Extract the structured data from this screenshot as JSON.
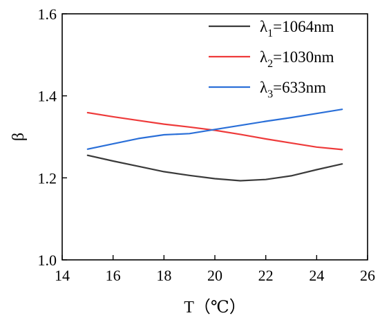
{
  "chart_data": {
    "type": "line",
    "title": "",
    "xlabel": "T（℃）",
    "ylabel": "β",
    "xlim": [
      14,
      26
    ],
    "ylim": [
      1.0,
      1.6
    ],
    "xticks": [
      "14",
      "16",
      "18",
      "20",
      "22",
      "24",
      "26"
    ],
    "yticks": [
      "1.0",
      "1.2",
      "1.4",
      "1.6"
    ],
    "grid": false,
    "legend_position": "top-right",
    "x": [
      15,
      16,
      17,
      18,
      19,
      20,
      21,
      22,
      23,
      24,
      25
    ],
    "series": [
      {
        "name": "λ1=1064nm",
        "name_base": "λ",
        "name_sub": "1",
        "name_rest": "=1064nm",
        "color": "#3a3a3a",
        "values": [
          1.255,
          1.241,
          1.228,
          1.215,
          1.206,
          1.198,
          1.193,
          1.196,
          1.205,
          1.22,
          1.234
        ]
      },
      {
        "name": "λ2=1030nm",
        "name_base": "λ",
        "name_sub": "2",
        "name_rest": "=1030nm",
        "color": "#ee3a3a",
        "values": [
          1.359,
          1.349,
          1.34,
          1.331,
          1.324,
          1.316,
          1.306,
          1.295,
          1.285,
          1.275,
          1.269
        ]
      },
      {
        "name": "λ3=633nm",
        "name_base": "λ",
        "name_sub": "3",
        "name_rest": "=633nm",
        "color": "#2a6fd8",
        "values": [
          1.27,
          1.283,
          1.296,
          1.305,
          1.308,
          1.318,
          1.328,
          1.338,
          1.347,
          1.357,
          1.367
        ]
      }
    ]
  }
}
